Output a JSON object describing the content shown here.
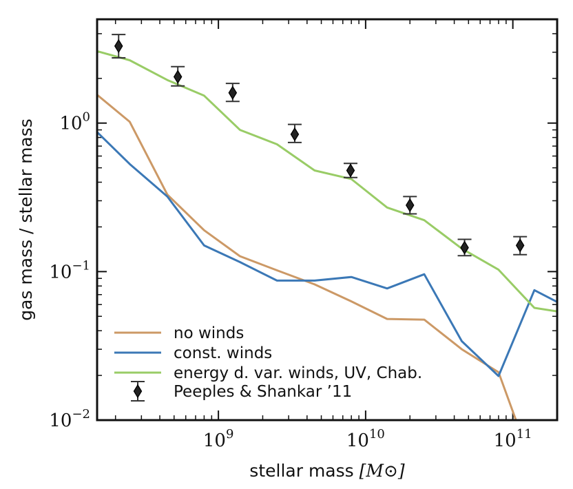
{
  "chart_data": {
    "type": "line",
    "title": "",
    "xlabel": "stellar mass",
    "xlabel_unit": "[M⊙]",
    "ylabel": "gas mass / stellar mass",
    "xscale": "log",
    "yscale": "log",
    "xlim": [
      150000000.0,
      200000000000.0
    ],
    "ylim": [
      0.01,
      5.0
    ],
    "x_ticks": [
      {
        "value": 1000000000.0,
        "base": "10",
        "exp": "9"
      },
      {
        "value": 10000000000.0,
        "base": "10",
        "exp": "10"
      },
      {
        "value": 100000000000.0,
        "base": "10",
        "exp": "11"
      }
    ],
    "y_ticks": [
      {
        "value": 1,
        "base": "10",
        "exp": "0"
      },
      {
        "value": 0.1,
        "base": "10",
        "exp": "−1"
      },
      {
        "value": 0.01,
        "base": "10",
        "exp": "−2"
      }
    ],
    "legend_position": "lower-left",
    "series": [
      {
        "name": "no winds",
        "color": "#cc9966",
        "x": [
          150000000.0,
          250000000.0,
          450000000.0,
          800000000.0,
          1400000000.0,
          2500000000.0,
          4500000000.0,
          8000000000.0,
          14000000000.0,
          25000000000.0,
          45000000000.0,
          80000000000.0,
          105000000000.0
        ],
        "y": [
          1.55,
          1.02,
          0.33,
          0.19,
          0.127,
          0.102,
          0.082,
          0.063,
          0.048,
          0.0475,
          0.03,
          0.021,
          0.01
        ]
      },
      {
        "name": "const. winds",
        "color": "#3b78b6",
        "x": [
          150000000.0,
          250000000.0,
          450000000.0,
          800000000.0,
          1400000000.0,
          2500000000.0,
          4500000000.0,
          8000000000.0,
          14000000000.0,
          25000000000.0,
          45000000000.0,
          80000000000.0,
          140000000000.0,
          200000000000.0
        ],
        "y": [
          0.87,
          0.53,
          0.32,
          0.15,
          0.116,
          0.087,
          0.087,
          0.092,
          0.077,
          0.096,
          0.034,
          0.0198,
          0.075,
          0.0625
        ]
      },
      {
        "name": "energy d. var. winds, UV, Chab.",
        "color": "#99cc66",
        "x": [
          150000000.0,
          250000000.0,
          450000000.0,
          800000000.0,
          1400000000.0,
          2500000000.0,
          4500000000.0,
          8000000000.0,
          14000000000.0,
          25000000000.0,
          45000000000.0,
          80000000000.0,
          140000000000.0,
          200000000000.0
        ],
        "y": [
          3.05,
          2.65,
          1.95,
          1.53,
          0.9,
          0.72,
          0.48,
          0.42,
          0.27,
          0.222,
          0.143,
          0.103,
          0.057,
          0.054
        ]
      }
    ],
    "observations": {
      "name": "Peeples & Shankar ’11",
      "color": "#333333",
      "x": [
        210000000.0,
        530000000.0,
        1250000000.0,
        3300000000.0,
        7900000000.0,
        20000000000.0,
        47000000000.0,
        112000000000.0
      ],
      "y": [
        3.3,
        2.05,
        1.6,
        0.84,
        0.48,
        0.28,
        0.145,
        0.15
      ],
      "yerr_low": [
        2.75,
        1.78,
        1.4,
        0.74,
        0.43,
        0.245,
        0.128,
        0.13
      ],
      "yerr_high": [
        3.95,
        2.4,
        1.85,
        0.98,
        0.535,
        0.32,
        0.165,
        0.172
      ]
    }
  }
}
